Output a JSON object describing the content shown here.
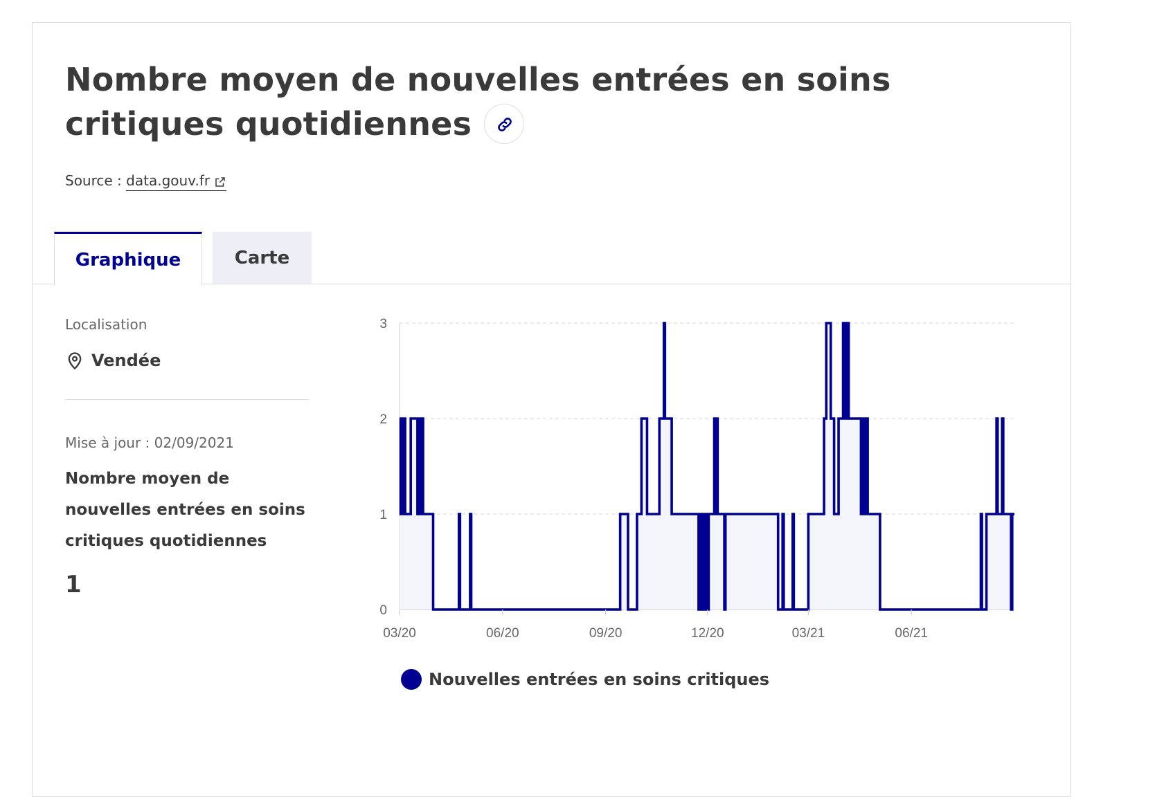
{
  "header": {
    "title": "Nombre moyen de nouvelles entrées en soins critiques quotidiennes",
    "source_prefix": "Source : ",
    "source_link": "data.gouv.fr"
  },
  "tabs": [
    {
      "label": "Graphique",
      "active": true
    },
    {
      "label": "Carte",
      "active": false
    }
  ],
  "sidebar": {
    "location_label": "Localisation",
    "location_value": "Vendée",
    "update_text": "Mise à jour : 02/09/2021",
    "metric_name": "Nombre moyen de nouvelles entrées en soins critiques quotidiennes",
    "metric_value": "1"
  },
  "colors": {
    "accent": "#000091",
    "fill": "#f4f4fb",
    "grid": "#dddddd"
  },
  "chart_data": {
    "type": "area",
    "title": "",
    "xlabel": "",
    "ylabel": "",
    "ylim": [
      0,
      3
    ],
    "yticks": [
      0,
      1,
      2,
      3
    ],
    "xlim": [
      "2020-03-01",
      "2021-09-01"
    ],
    "xticks": [
      {
        "date": "2020-03-01",
        "label": "03/20"
      },
      {
        "date": "2020-06-01",
        "label": "06/20"
      },
      {
        "date": "2020-09-01",
        "label": "09/20"
      },
      {
        "date": "2020-12-01",
        "label": "12/20"
      },
      {
        "date": "2021-03-01",
        "label": "03/21"
      },
      {
        "date": "2021-06-01",
        "label": "06/21"
      }
    ],
    "grid": true,
    "legend_position": "bottom",
    "series": [
      {
        "name": "Nouvelles entrées en soins critiques",
        "points": [
          [
            "2020-03-01",
            2
          ],
          [
            "2020-03-02",
            1
          ],
          [
            "2020-03-03",
            2
          ],
          [
            "2020-03-04",
            1
          ],
          [
            "2020-03-05",
            2
          ],
          [
            "2020-03-06",
            1
          ],
          [
            "2020-03-10",
            1
          ],
          [
            "2020-03-11",
            2
          ],
          [
            "2020-03-16",
            2
          ],
          [
            "2020-03-17",
            1
          ],
          [
            "2020-03-18",
            2
          ],
          [
            "2020-03-20",
            1
          ],
          [
            "2020-03-21",
            2
          ],
          [
            "2020-03-22",
            1
          ],
          [
            "2020-03-30",
            1
          ],
          [
            "2020-03-31",
            0
          ],
          [
            "2020-04-22",
            0
          ],
          [
            "2020-04-23",
            1
          ],
          [
            "2020-04-24",
            0
          ],
          [
            "2020-05-02",
            0
          ],
          [
            "2020-05-03",
            1
          ],
          [
            "2020-05-04",
            0
          ],
          [
            "2020-09-13",
            0
          ],
          [
            "2020-09-14",
            1
          ],
          [
            "2020-09-20",
            1
          ],
          [
            "2020-09-21",
            0
          ],
          [
            "2020-09-28",
            0
          ],
          [
            "2020-09-29",
            1
          ],
          [
            "2020-10-02",
            1
          ],
          [
            "2020-10-03",
            2
          ],
          [
            "2020-10-07",
            2
          ],
          [
            "2020-10-08",
            1
          ],
          [
            "2020-10-18",
            1
          ],
          [
            "2020-10-19",
            2
          ],
          [
            "2020-10-22",
            2
          ],
          [
            "2020-10-23",
            3
          ],
          [
            "2020-10-24",
            2
          ],
          [
            "2020-10-29",
            2
          ],
          [
            "2020-10-30",
            1
          ],
          [
            "2020-11-22",
            1
          ],
          [
            "2020-11-23",
            0
          ],
          [
            "2020-11-24",
            1
          ],
          [
            "2020-11-26",
            0
          ],
          [
            "2020-11-27",
            1
          ],
          [
            "2020-11-28",
            1
          ],
          [
            "2020-11-29",
            0
          ],
          [
            "2020-11-30",
            1
          ],
          [
            "2020-12-01",
            0
          ],
          [
            "2020-12-02",
            1
          ],
          [
            "2020-12-06",
            1
          ],
          [
            "2020-12-07",
            2
          ],
          [
            "2020-12-08",
            1
          ],
          [
            "2020-12-09",
            2
          ],
          [
            "2020-12-10",
            1
          ],
          [
            "2020-12-15",
            1
          ],
          [
            "2020-12-16",
            0
          ],
          [
            "2020-12-17",
            1
          ],
          [
            "2021-02-01",
            1
          ],
          [
            "2021-02-02",
            0
          ],
          [
            "2021-02-05",
            0
          ],
          [
            "2021-02-06",
            1
          ],
          [
            "2021-02-07",
            0
          ],
          [
            "2021-02-14",
            0
          ],
          [
            "2021-02-15",
            1
          ],
          [
            "2021-02-16",
            0
          ],
          [
            "2021-02-28",
            0
          ],
          [
            "2021-03-01",
            1
          ],
          [
            "2021-03-14",
            1
          ],
          [
            "2021-03-15",
            2
          ],
          [
            "2021-03-17",
            3
          ],
          [
            "2021-03-20",
            3
          ],
          [
            "2021-03-21",
            2
          ],
          [
            "2021-03-23",
            2
          ],
          [
            "2021-03-24",
            1
          ],
          [
            "2021-03-27",
            1
          ],
          [
            "2021-03-28",
            2
          ],
          [
            "2021-03-31",
            2
          ],
          [
            "2021-04-01",
            3
          ],
          [
            "2021-04-02",
            2
          ],
          [
            "2021-04-03",
            3
          ],
          [
            "2021-04-04",
            2
          ],
          [
            "2021-04-05",
            3
          ],
          [
            "2021-04-06",
            2
          ],
          [
            "2021-04-16",
            2
          ],
          [
            "2021-04-17",
            1
          ],
          [
            "2021-04-18",
            2
          ],
          [
            "2021-04-19",
            1
          ],
          [
            "2021-04-20",
            2
          ],
          [
            "2021-04-21",
            1
          ],
          [
            "2021-04-22",
            2
          ],
          [
            "2021-04-23",
            1
          ],
          [
            "2021-05-03",
            1
          ],
          [
            "2021-05-04",
            0
          ],
          [
            "2021-08-01",
            0
          ],
          [
            "2021-08-02",
            1
          ],
          [
            "2021-08-03",
            0
          ],
          [
            "2021-08-06",
            0
          ],
          [
            "2021-08-07",
            1
          ],
          [
            "2021-08-15",
            1
          ],
          [
            "2021-08-16",
            2
          ],
          [
            "2021-08-17",
            1
          ],
          [
            "2021-08-20",
            1
          ],
          [
            "2021-08-21",
            2
          ],
          [
            "2021-08-22",
            1
          ],
          [
            "2021-08-28",
            1
          ],
          [
            "2021-08-29",
            0
          ],
          [
            "2021-08-30",
            1
          ],
          [
            "2021-09-01",
            1
          ]
        ]
      }
    ]
  }
}
